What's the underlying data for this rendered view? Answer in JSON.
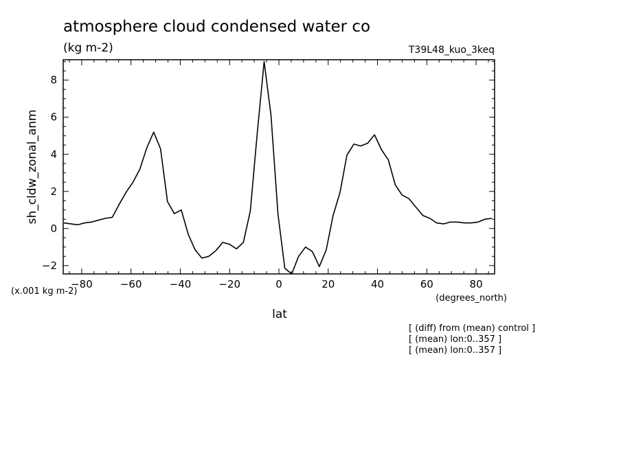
{
  "header": {
    "title": "atmosphere cloud condensed water co",
    "units": "(kg m-2)",
    "run_id": "T39L48_kuo_3keq"
  },
  "scale_note": "(x.001 kg m-2)",
  "x_units": "(degrees_north)",
  "notes": [
    "[ (diff) from (mean) control ]",
    "[ (mean) lon:0..357 ]",
    "[ (mean) lon:0..357 ]"
  ],
  "chart_data": {
    "type": "line",
    "title": "atmosphere cloud condensed water co",
    "xlabel": "lat",
    "ylabel": "sh_cldw_zonal_anm",
    "xlim": [
      -87.5,
      87.5
    ],
    "ylim": [
      -2.45,
      9.1
    ],
    "xticks": [
      -80,
      -60,
      -40,
      -20,
      0,
      20,
      40,
      60,
      80
    ],
    "xtick_labels": [
      "−80",
      "−60",
      "−40",
      "−20",
      "0",
      "20",
      "40",
      "60",
      "80"
    ],
    "yticks": [
      -2,
      0,
      2,
      4,
      6,
      8
    ],
    "ytick_labels": [
      "−2",
      "0",
      "2",
      "4",
      "6",
      "8"
    ],
    "grid": false,
    "series": [
      {
        "x": [
          -87.2,
          -84.4,
          -81.6,
          -78.8,
          -76.0,
          -73.2,
          -70.4,
          -67.6,
          -64.8,
          -62.0,
          -59.2,
          -56.4,
          -53.6,
          -50.8,
          -48.0,
          -45.2,
          -42.4,
          -39.6,
          -36.8,
          -34.0,
          -31.2,
          -28.4,
          -25.6,
          -22.8,
          -20.0,
          -17.2,
          -14.4,
          -11.6,
          -8.8,
          -6.0,
          -3.2,
          -0.4,
          2.4,
          5.2,
          8.0,
          10.8,
          13.6,
          16.4,
          19.2,
          22.0,
          24.8,
          27.6,
          30.4,
          33.2,
          36.0,
          38.8,
          41.6,
          44.4,
          47.2,
          50.0,
          52.8,
          55.6,
          58.4,
          61.2,
          64.0,
          66.8,
          69.6,
          72.4,
          75.2,
          78.0,
          80.8,
          83.6,
          86.4
        ],
        "y": [
          0.3,
          0.25,
          0.2,
          0.3,
          0.35,
          0.45,
          0.55,
          0.6,
          1.3,
          1.95,
          2.5,
          3.2,
          4.35,
          5.2,
          4.3,
          1.45,
          0.8,
          1.0,
          -0.3,
          -1.15,
          -1.6,
          -1.5,
          -1.2,
          -0.75,
          -0.85,
          -1.1,
          -0.75,
          0.95,
          5.1,
          9.0,
          6.1,
          0.8,
          -2.15,
          -2.45,
          -1.5,
          -1.0,
          -1.25,
          -2.05,
          -1.15,
          0.7,
          1.95,
          3.95,
          4.55,
          4.45,
          4.6,
          5.05,
          4.25,
          3.7,
          2.35,
          1.8,
          1.6,
          1.15,
          0.7,
          0.55,
          0.3,
          0.25,
          0.35,
          0.35,
          0.3,
          0.3,
          0.35,
          0.5,
          0.55
        ]
      }
    ]
  }
}
